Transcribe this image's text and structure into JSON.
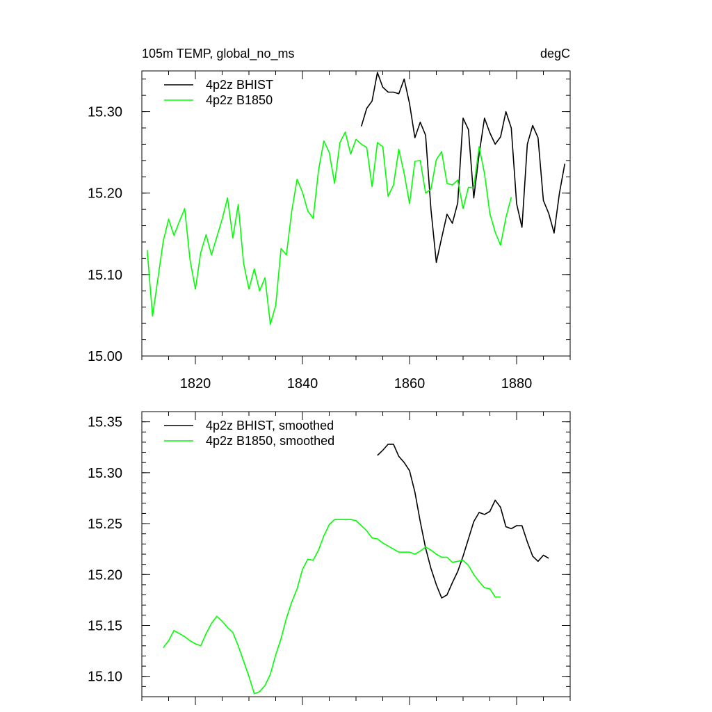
{
  "chart_data": [
    {
      "type": "line",
      "title": "105m TEMP, global_no_ms",
      "units": "degC",
      "xlabel": "",
      "ylabel": "",
      "xlim": [
        1810,
        1890
      ],
      "ylim": [
        15.0,
        15.35
      ],
      "xticks": [
        1820,
        1840,
        1860,
        1880
      ],
      "xtick_labels": [
        "1820",
        "1840",
        "1860",
        "1880"
      ],
      "yticks": [
        15.0,
        15.1,
        15.2,
        15.3
      ],
      "ytick_labels": [
        "15.00",
        "15.10",
        "15.20",
        "15.30"
      ],
      "legend_position": "top-left",
      "series": [
        {
          "name": "4p2z BHIST",
          "color": "#000000",
          "x": [
            1851,
            1852,
            1853,
            1854,
            1855,
            1856,
            1857,
            1858,
            1859,
            1860,
            1861,
            1862,
            1863,
            1864,
            1865,
            1866,
            1867,
            1868,
            1869,
            1870,
            1871,
            1872,
            1873,
            1874,
            1875,
            1876,
            1877,
            1878,
            1879,
            1880,
            1881,
            1882,
            1883,
            1884,
            1885,
            1886,
            1887,
            1888,
            1889
          ],
          "values": [
            15.282,
            15.304,
            15.313,
            15.348,
            15.33,
            15.324,
            15.324,
            15.322,
            15.34,
            15.31,
            15.268,
            15.287,
            15.271,
            15.18,
            15.115,
            15.145,
            15.174,
            15.163,
            15.188,
            15.292,
            15.278,
            15.194,
            15.248,
            15.292,
            15.274,
            15.26,
            15.269,
            15.3,
            15.28,
            15.187,
            15.158,
            15.26,
            15.283,
            15.268,
            15.191,
            15.175,
            15.151,
            15.2,
            15.236
          ]
        },
        {
          "name": "4p2z B1850",
          "color": "#00ff00",
          "x": [
            1811,
            1812,
            1813,
            1814,
            1815,
            1816,
            1817,
            1818,
            1819,
            1820,
            1821,
            1822,
            1823,
            1824,
            1825,
            1826,
            1827,
            1828,
            1829,
            1830,
            1831,
            1832,
            1833,
            1834,
            1835,
            1836,
            1837,
            1838,
            1839,
            1840,
            1841,
            1842,
            1843,
            1844,
            1845,
            1846,
            1847,
            1848,
            1849,
            1850,
            1851,
            1852,
            1853,
            1854,
            1855,
            1856,
            1857,
            1858,
            1859,
            1860,
            1861,
            1862,
            1863,
            1864,
            1865,
            1866,
            1867,
            1868,
            1869,
            1870,
            1871,
            1872,
            1873,
            1874,
            1875,
            1876,
            1877,
            1878,
            1879
          ],
          "values": [
            15.13,
            15.049,
            15.095,
            15.141,
            15.168,
            15.148,
            15.165,
            15.181,
            15.118,
            15.082,
            15.127,
            15.149,
            15.124,
            15.146,
            15.168,
            15.194,
            15.145,
            15.186,
            15.114,
            15.082,
            15.107,
            15.08,
            15.096,
            15.039,
            15.062,
            15.132,
            15.124,
            15.178,
            15.217,
            15.201,
            15.178,
            15.169,
            15.228,
            15.264,
            15.25,
            15.212,
            15.262,
            15.275,
            15.248,
            15.266,
            15.26,
            15.256,
            15.208,
            15.262,
            15.257,
            15.196,
            15.21,
            15.254,
            15.224,
            15.187,
            15.239,
            15.24,
            15.2,
            15.205,
            15.241,
            15.251,
            15.212,
            15.21,
            15.216,
            15.181,
            15.207,
            15.207,
            15.257,
            15.224,
            15.175,
            15.152,
            15.136,
            15.17,
            15.195
          ]
        }
      ]
    },
    {
      "type": "line",
      "title": "",
      "units": "",
      "xlabel": "",
      "ylabel": "",
      "xlim": [
        1810,
        1890
      ],
      "ylim": [
        15.08,
        15.36
      ],
      "xticks": [
        1820,
        1840,
        1860,
        1880
      ],
      "yticks": [
        15.1,
        15.15,
        15.2,
        15.25,
        15.3,
        15.35
      ],
      "ytick_labels": [
        "15.10",
        "15.15",
        "15.20",
        "15.25",
        "15.30",
        "15.35"
      ],
      "legend_position": "top-left",
      "series": [
        {
          "name": "4p2z BHIST, smoothed",
          "color": "#000000",
          "x": [
            1854,
            1855,
            1856,
            1857,
            1858,
            1859,
            1860,
            1861,
            1862,
            1863,
            1864,
            1865,
            1866,
            1867,
            1868,
            1869,
            1870,
            1871,
            1872,
            1873,
            1874,
            1875,
            1876,
            1877,
            1878,
            1879,
            1880,
            1881,
            1882,
            1883,
            1884,
            1885,
            1886
          ],
          "values": [
            15.317,
            15.322,
            15.328,
            15.328,
            15.316,
            15.31,
            15.302,
            15.281,
            15.252,
            15.226,
            15.206,
            15.19,
            15.177,
            15.18,
            15.192,
            15.203,
            15.218,
            15.235,
            15.252,
            15.261,
            15.259,
            15.262,
            15.273,
            15.266,
            15.247,
            15.245,
            15.248,
            15.248,
            15.232,
            15.218,
            15.213,
            15.219,
            15.216
          ]
        },
        {
          "name": "4p2z B1850, smoothed",
          "color": "#00ff00",
          "x": [
            1814,
            1815,
            1816,
            1817,
            1818,
            1819,
            1820,
            1821,
            1822,
            1823,
            1824,
            1825,
            1826,
            1827,
            1828,
            1829,
            1830,
            1831,
            1832,
            1833,
            1834,
            1835,
            1836,
            1837,
            1838,
            1839,
            1840,
            1841,
            1842,
            1843,
            1844,
            1845,
            1846,
            1847,
            1848,
            1849,
            1850,
            1851,
            1852,
            1853,
            1854,
            1855,
            1856,
            1857,
            1858,
            1859,
            1860,
            1861,
            1862,
            1863,
            1864,
            1865,
            1866,
            1867,
            1868,
            1869,
            1870,
            1871,
            1872,
            1873,
            1874,
            1875,
            1876,
            1877
          ],
          "values": [
            15.128,
            15.135,
            15.145,
            15.142,
            15.139,
            15.135,
            15.132,
            15.13,
            15.142,
            15.152,
            15.159,
            15.154,
            15.148,
            15.143,
            15.13,
            15.115,
            15.1,
            15.083,
            15.085,
            15.091,
            15.102,
            15.121,
            15.137,
            15.157,
            15.173,
            15.186,
            15.205,
            15.215,
            15.214,
            15.224,
            15.238,
            15.249,
            15.254,
            15.254,
            15.254,
            15.254,
            15.253,
            15.248,
            15.243,
            15.236,
            15.235,
            15.231,
            15.228,
            15.225,
            15.222,
            15.222,
            15.222,
            15.22,
            15.223,
            15.227,
            15.224,
            15.22,
            15.217,
            15.217,
            15.212,
            15.213,
            15.214,
            15.209,
            15.2,
            15.193,
            15.187,
            15.186,
            15.178,
            15.178
          ]
        }
      ]
    }
  ]
}
